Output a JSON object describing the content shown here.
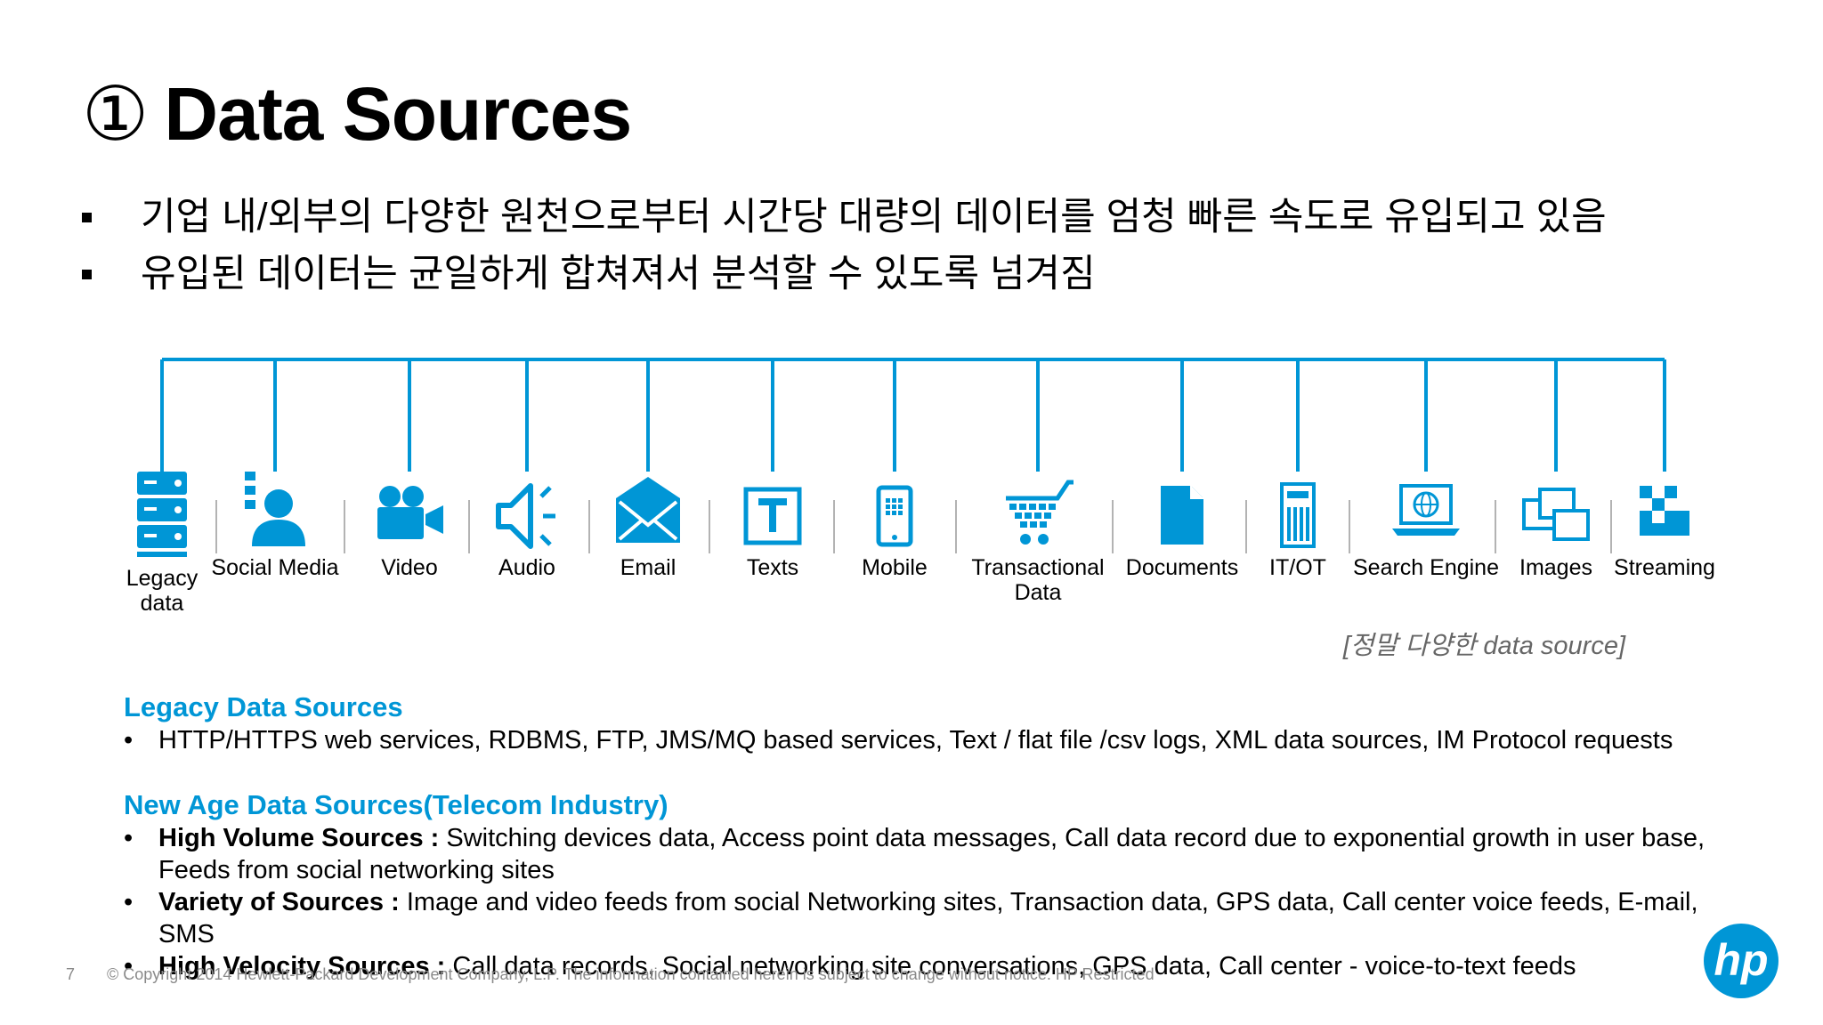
{
  "slide": {
    "title_number": "①",
    "title": "Data Sources",
    "bullets": [
      "기업 내/외부의 다양한 원천으로부터 시간당 대량의 데이터를 엄청 빠른 속도로 유입되고 있음",
      "유입된 데이터는 균일하게 합쳐져서 분석할 수 있도록 넘겨짐"
    ]
  },
  "diagram": {
    "line_color": "#0096d6",
    "icon_color": "#0096d6",
    "separator_color": "#b3b3b3",
    "sources": [
      {
        "label": "Legacy data",
        "icon": "server-icon"
      },
      {
        "label": "Social Media",
        "icon": "person-icon"
      },
      {
        "label": "Video",
        "icon": "video-camera-icon"
      },
      {
        "label": "Audio",
        "icon": "speaker-icon"
      },
      {
        "label": "Email",
        "icon": "envelope-icon"
      },
      {
        "label": "Texts",
        "icon": "text-t-icon"
      },
      {
        "label": "Mobile",
        "icon": "mobile-phone-icon"
      },
      {
        "label": "Transactional Data",
        "icon": "shopping-cart-icon"
      },
      {
        "label": "Documents",
        "icon": "document-icon"
      },
      {
        "label": "IT/OT",
        "icon": "device-icon"
      },
      {
        "label": "Search Engine",
        "icon": "laptop-globe-icon"
      },
      {
        "label": "Images",
        "icon": "images-icon"
      },
      {
        "label": "Streaming",
        "icon": "streaming-icon"
      }
    ],
    "caption": "[정말 다양한 data source]"
  },
  "legacy": {
    "heading": "Legacy Data Sources",
    "items": [
      "HTTP/HTTPS web services, RDBMS, FTP, JMS/MQ based services, Text / flat file /csv logs, XML data sources, IM Protocol requests"
    ]
  },
  "new_age": {
    "heading": "New Age Data Sources(Telecom Industry)",
    "items": [
      {
        "label": "High Volume Sources :",
        "text": " Switching devices data, Access point data messages, Call data record due to exponential growth in user base, Feeds from social networking sites"
      },
      {
        "label": "Variety of Sources :",
        "text": " Image and video feeds from social Networking sites, Transaction data, GPS data, Call center voice feeds, E-mail, SMS"
      },
      {
        "label": "High Velocity Sources :",
        "text": " Call data records, Social networking site conversations, GPS data, Call center - voice-to-text feeds"
      }
    ]
  },
  "footer": {
    "page_number": "7",
    "copyright": "© Copyright 2014 Hewlett-Packard Development Company, L.P. The information contained herein is subject to change without notice. HP Restricted"
  },
  "logo": {
    "text": "hp",
    "color": "#0096d6"
  }
}
